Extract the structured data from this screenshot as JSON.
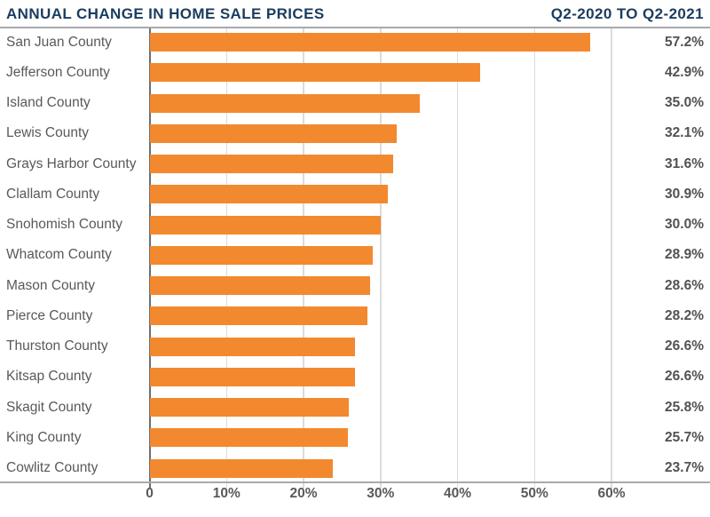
{
  "header": {
    "title": "ANNUAL CHANGE IN HOME SALE PRICES",
    "period": "Q2-2020 TO Q2-2021"
  },
  "chart_data": {
    "type": "bar",
    "orientation": "horizontal",
    "title": "ANNUAL CHANGE IN HOME SALE PRICES",
    "subtitle": "Q2-2020 TO Q2-2021",
    "categories": [
      "San Juan County",
      "Jefferson County",
      "Island County",
      "Lewis County",
      "Grays Harbor County",
      "Clallam County",
      "Snohomish County",
      "Whatcom County",
      "Mason County",
      "Pierce County",
      "Thurston County",
      "Kitsap County",
      "Skagit County",
      "King County",
      "Cowlitz County"
    ],
    "values": [
      57.2,
      42.9,
      35.0,
      32.1,
      31.6,
      30.9,
      30.0,
      28.9,
      28.6,
      28.2,
      26.6,
      26.6,
      25.8,
      25.7,
      23.7
    ],
    "value_labels": [
      "57.2%",
      "42.9%",
      "35.0%",
      "32.1%",
      "31.6%",
      "30.9%",
      "30.0%",
      "28.9%",
      "28.6%",
      "28.2%",
      "26.6%",
      "26.6%",
      "25.8%",
      "25.7%",
      "23.7%"
    ],
    "x_ticks": [
      {
        "label": "0",
        "value": 0
      },
      {
        "label": "10%",
        "value": 10
      },
      {
        "label": "20%",
        "value": 20
      },
      {
        "label": "30%",
        "value": 30
      },
      {
        "label": "40%",
        "value": 40
      },
      {
        "label": "50%",
        "value": 50
      },
      {
        "label": "60%",
        "value": 60
      }
    ],
    "xlim": [
      0,
      72.8
    ],
    "grid": true,
    "legend": "none"
  },
  "colors": {
    "bar": "#F3892E",
    "title_text": "#1B3C5F",
    "category_text": "#58595B",
    "value_text": "#515254",
    "tick_text": "#58595B",
    "axis_line": "#A7A9AC",
    "zero_line": "#6D6E71",
    "gridline": "#DBDCDD",
    "background": "#FFFFFF"
  }
}
